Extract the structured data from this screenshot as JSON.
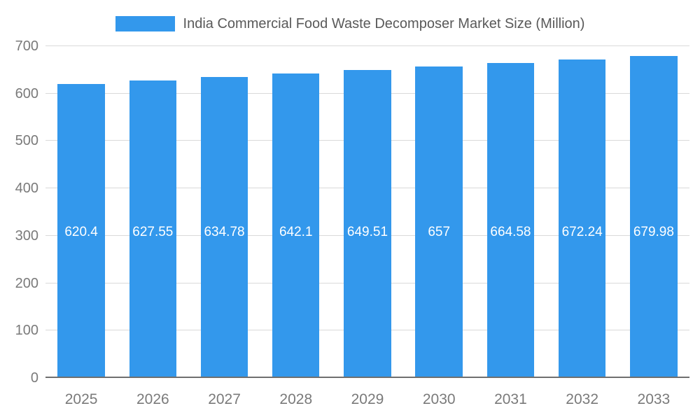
{
  "chart_data": {
    "type": "bar",
    "title": "India Commercial Food Waste Decomposer Market Size (Million)",
    "categories": [
      "2025",
      "2026",
      "2027",
      "2028",
      "2029",
      "2030",
      "2031",
      "2032",
      "2033"
    ],
    "values": [
      620.4,
      627.55,
      634.78,
      642.1,
      649.51,
      657,
      664.58,
      672.24,
      679.98
    ],
    "value_labels": [
      "620.4",
      "627.55",
      "634.78",
      "642.1",
      "649.51",
      "657",
      "664.58",
      "672.24",
      "679.98"
    ],
    "xlabel": "",
    "ylabel": "",
    "ylim": [
      0,
      700
    ],
    "yticks": [
      0,
      100,
      200,
      300,
      400,
      500,
      600,
      700
    ],
    "bar_color": "#3398EC",
    "grid": true,
    "gridline_color": "#d9d9d9",
    "axis_text_color": "#7a7a7a",
    "title_color": "#595959",
    "value_label_color": "#ffffff",
    "legend_position": "top"
  }
}
